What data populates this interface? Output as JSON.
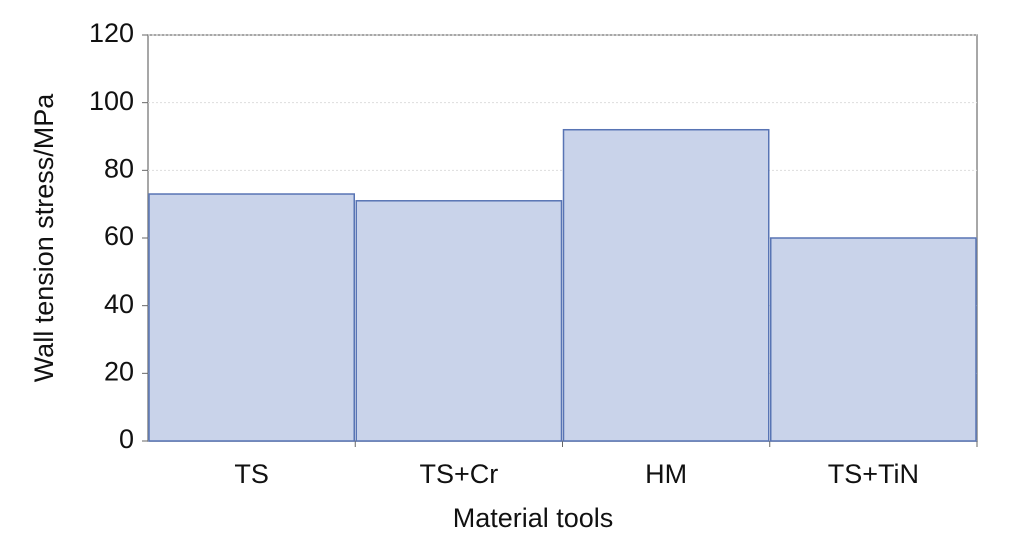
{
  "chart_data": {
    "type": "bar",
    "x_label": "Material tools",
    "y_label": "Wall tension stress/MPa",
    "categories": [
      "TS",
      "TS+Cr",
      "HM",
      "TS+TiN"
    ],
    "values": [
      73,
      71,
      92,
      60
    ],
    "color": "#c9d3ea",
    "ylim": [
      0,
      120
    ],
    "yticks": [
      0,
      20,
      40,
      60,
      80,
      100,
      120
    ],
    "grid": true
  }
}
